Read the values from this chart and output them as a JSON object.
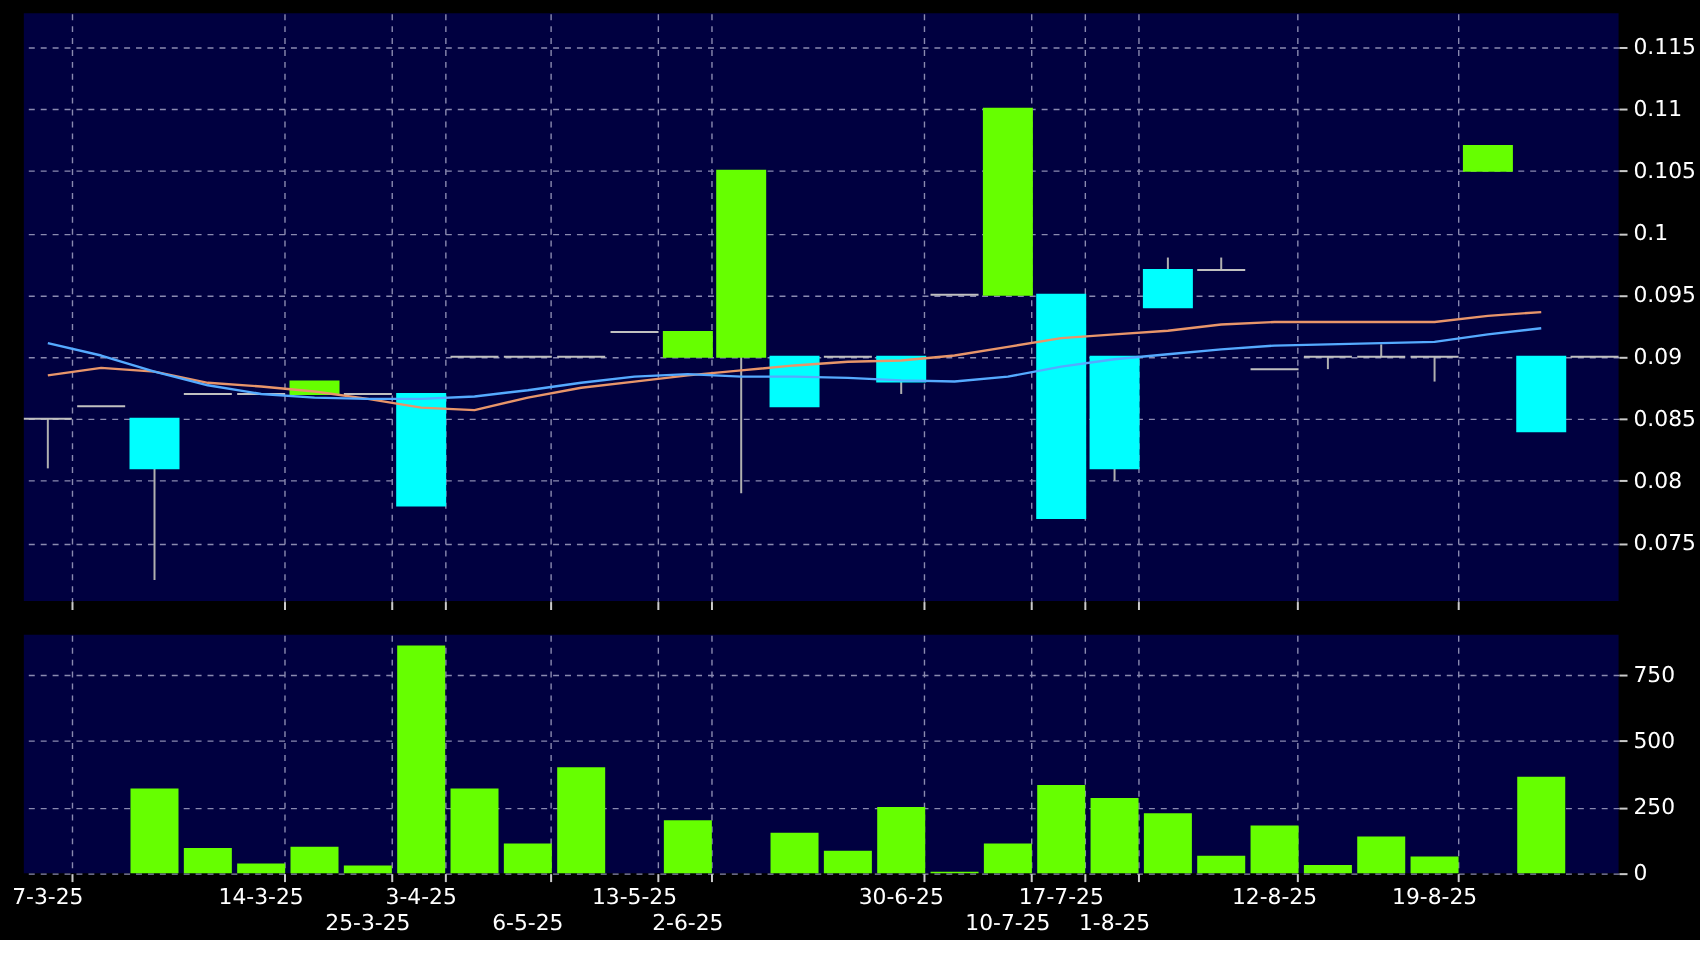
{
  "chart_data": [
    {
      "type": "candlestick",
      "categories": [
        null,
        null,
        null,
        null,
        null,
        null,
        null,
        null,
        null,
        null,
        null,
        null,
        null,
        null,
        null,
        null,
        null,
        null,
        null,
        null,
        null,
        null,
        null,
        null,
        null,
        null,
        null,
        null,
        null,
        null
      ],
      "ohlc": [
        [
          0.085,
          0.085,
          0.081,
          0.085
        ],
        [
          0.086,
          0.086,
          0.086,
          0.086
        ],
        [
          0.085,
          0.085,
          0.072,
          0.081
        ],
        [
          0.087,
          0.087,
          0.087,
          0.087
        ],
        [
          0.087,
          0.087,
          0.087,
          0.087
        ],
        [
          0.087,
          0.088,
          0.087,
          0.088
        ],
        [
          0.087,
          0.087,
          0.087,
          0.087
        ],
        [
          0.087,
          0.087,
          0.078,
          0.078
        ],
        [
          0.09,
          0.09,
          0.09,
          0.09
        ],
        [
          0.09,
          0.09,
          0.09,
          0.09
        ],
        [
          0.09,
          0.09,
          0.09,
          0.09
        ],
        [
          0.092,
          0.092,
          0.092,
          0.092
        ],
        [
          0.09,
          0.092,
          0.09,
          0.092
        ],
        [
          0.09,
          0.105,
          0.079,
          0.105
        ],
        [
          0.09,
          0.09,
          0.086,
          0.086
        ],
        [
          0.09,
          0.09,
          0.09,
          0.09
        ],
        [
          0.09,
          0.09,
          0.087,
          0.088
        ],
        [
          0.095,
          0.095,
          0.095,
          0.095
        ],
        [
          0.095,
          0.11,
          0.095,
          0.11
        ],
        [
          0.095,
          0.095,
          0.077,
          0.077
        ],
        [
          0.09,
          0.09,
          0.08,
          0.081
        ],
        [
          0.097,
          0.098,
          0.094,
          0.094
        ],
        [
          0.097,
          0.098,
          0.097,
          0.097
        ],
        [
          0.089,
          0.089,
          0.089,
          0.089
        ],
        [
          0.09,
          0.09,
          0.089,
          0.09
        ],
        [
          0.09,
          0.091,
          0.09,
          0.09
        ],
        [
          0.09,
          0.09,
          0.088,
          0.09
        ],
        [
          0.105,
          0.107,
          0.105,
          0.107
        ],
        [
          0.09,
          0.09,
          0.084,
          0.084
        ],
        [
          0.09,
          0.09,
          0.09,
          0.09
        ]
      ],
      "colors": [
        "#c0c0c0",
        "#c0c0c0",
        "#00ffff",
        "#c0c0c0",
        "#c0c0c0",
        "#66ff00",
        "#c0c0c0",
        "#00ffff",
        "#c0c0c0",
        "#c0c0c0",
        "#c0c0c0",
        "#c0c0c0",
        "#66ff00",
        "#66ff00",
        "#00ffff",
        "#c0c0c0",
        "#00ffff",
        "#c0c0c0",
        "#66ff00",
        "#00ffff",
        "#00ffff",
        "#00ffff",
        "#c0c0c0",
        "#c0c0c0",
        "#c0c0c0",
        "#c0c0c0",
        "#c0c0c0",
        "#66ff00",
        "#00ffff",
        "#c0c0c0"
      ],
      "series": [
        {
          "type": "line",
          "color": "#e8956a",
          "values": [
            0.0885,
            0.0891,
            0.0888,
            0.0879,
            0.0876,
            0.0872,
            0.0866,
            0.0859,
            0.0857,
            0.0867,
            0.0875,
            0.088,
            0.0885,
            0.0889,
            0.0893,
            0.0896,
            0.0897,
            0.0901,
            0.0908,
            0.0915,
            0.0918,
            0.0921,
            0.0926,
            0.0928,
            0.0928,
            0.0928,
            0.0928,
            0.0933,
            0.0936,
            null
          ]
        },
        {
          "type": "line",
          "color": "#55aaff",
          "values": [
            0.0911,
            0.0901,
            0.0888,
            0.0877,
            0.087,
            0.0867,
            0.0866,
            0.0866,
            0.0868,
            0.0873,
            0.0879,
            0.0884,
            0.0886,
            0.0884,
            0.0884,
            0.0883,
            0.0881,
            0.088,
            0.0884,
            0.0892,
            0.0898,
            0.0902,
            0.0906,
            0.0909,
            0.091,
            0.0911,
            0.0912,
            0.0918,
            0.0923,
            null
          ]
        }
      ],
      "ylim": [
        0.0703,
        0.1177
      ],
      "yticks": [
        0.075,
        0.08,
        0.085,
        0.09,
        0.095,
        0.1,
        0.105,
        0.11,
        0.115
      ],
      "tick_labels": "y",
      "grid": true
    },
    {
      "type": "bar",
      "categories": [
        "7-3-25",
        null,
        null,
        null,
        "14-3-25",
        null,
        "25-3-25",
        "3-4-25",
        null,
        "6-5-25",
        null,
        "13-5-25",
        "2-6-25",
        null,
        null,
        null,
        "30-6-25",
        null,
        "10-7-25",
        "17-7-25",
        "1-8-25",
        null,
        null,
        "12-8-25",
        null,
        null,
        "19-8-25",
        null,
        null,
        null
      ],
      "values": [
        0,
        0,
        320,
        95,
        36,
        100,
        29,
        860,
        320,
        112,
        400,
        0,
        200,
        0,
        153,
        85,
        250,
        5,
        112,
        333,
        284,
        226,
        66,
        180,
        31,
        138,
        63,
        0,
        364,
        0
      ],
      "color": "#66ff00",
      "ylim": [
        0,
        900
      ],
      "yticks": [
        0,
        250,
        500,
        750
      ],
      "grid": true
    }
  ]
}
